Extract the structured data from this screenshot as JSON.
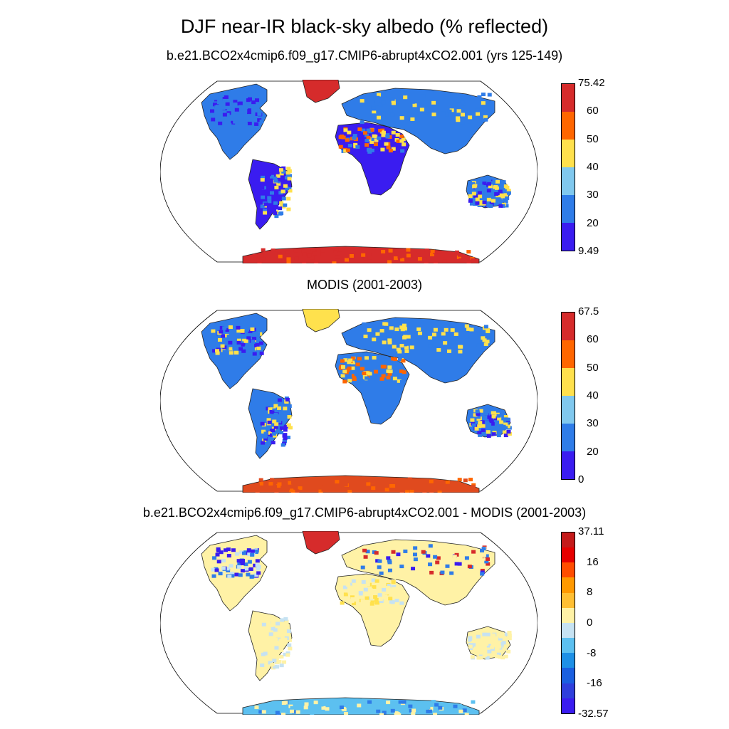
{
  "title": "DJF near-IR black-sky albedo (% reflected)",
  "panels": [
    {
      "label": "b.e21.BCO2x4cmip6.f09_g17.CMIP6-abrupt4xCO2.001 (yrs 125-149)",
      "colorbar": {
        "colors": [
          "#d62b2b",
          "#ff6600",
          "#ffe14d",
          "#80c8ee",
          "#2f7ce8",
          "#3a1cf0"
        ],
        "labels": [
          "75.42",
          "60",
          "50",
          "40",
          "30",
          "20",
          "9.49"
        ]
      }
    },
    {
      "label": "MODIS (2001-2003)",
      "colorbar": {
        "colors": [
          "#d62b2b",
          "#ff6600",
          "#ffe14d",
          "#80c8ee",
          "#2f7ce8",
          "#3a1cf0"
        ],
        "labels": [
          "67.5",
          "60",
          "50",
          "40",
          "30",
          "20",
          "0"
        ]
      }
    },
    {
      "label": "b.e21.BCO2x4cmip6.f09_g17.CMIP6-abrupt4xCO2.001 - MODIS (2001-2003)",
      "colorbar": {
        "colors": [
          "#c41a1a",
          "#e60000",
          "#ff4d00",
          "#ff9900",
          "#ffbf33",
          "#fff2a6",
          "#c6e2f2",
          "#5cc0f0",
          "#1e90e6",
          "#1a5fe0",
          "#2f3fdc",
          "#3a1cf0"
        ],
        "labels": [
          "37.11",
          "16",
          "8",
          "0",
          "-8",
          "-16",
          "-32.57"
        ]
      }
    }
  ],
  "colors": {
    "antarctica_top": "#d62b2b",
    "antarctica_mid": "#e04a1e",
    "antarctica_bottom_blue": "#5cc0f0",
    "land_blue": "#2f7ce8",
    "land_dark_blue": "#3a1cf0",
    "desert_yellow": "#ffe14d",
    "desert_orange": "#ff6600",
    "greenland_red": "#d62b2b",
    "diff_light_yellow": "#fff2a6",
    "diff_light_blue": "#c6e2f2"
  }
}
